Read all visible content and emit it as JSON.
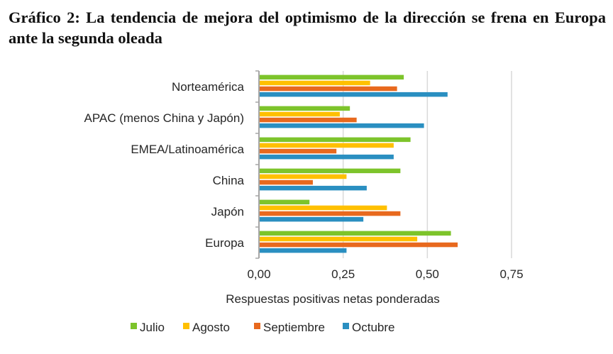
{
  "title": "Gráfico 2: La tendencia de mejora del optimismo de la dirección se frena en Europa ante la segunda oleada",
  "chart_data": {
    "type": "bar",
    "orientation": "horizontal",
    "title": "Gráfico 2: La tendencia de mejora del optimismo de la dirección se frena en Europa ante la segunda oleada",
    "xlabel": "Respuestas positivas netas ponderadas",
    "ylabel": "",
    "categories": [
      "Norteamérica",
      "APAC (menos China y Japón)",
      "EMEA/Latinoamérica",
      "China",
      "Japón",
      "Europa"
    ],
    "series": [
      {
        "name": "Julio",
        "color": "#7dc42b",
        "values": [
          0.43,
          0.27,
          0.45,
          0.42,
          0.15,
          0.57
        ]
      },
      {
        "name": "Agosto",
        "color": "#ffc000",
        "values": [
          0.33,
          0.24,
          0.4,
          0.26,
          0.38,
          0.47
        ]
      },
      {
        "name": "Septiembre",
        "color": "#e8691e",
        "values": [
          0.41,
          0.29,
          0.23,
          0.16,
          0.42,
          0.59
        ]
      },
      {
        "name": "Octubre",
        "color": "#2a8fc1",
        "values": [
          0.56,
          0.49,
          0.4,
          0.32,
          0.31,
          0.26
        ]
      }
    ],
    "xlim": [
      0,
      0.75
    ],
    "xticks": [
      0,
      0.25,
      0.5,
      0.75
    ],
    "xtick_labels": [
      "0,00",
      "0,25",
      "0,50",
      "0,75"
    ],
    "grid": true,
    "legend_position": "bottom"
  }
}
